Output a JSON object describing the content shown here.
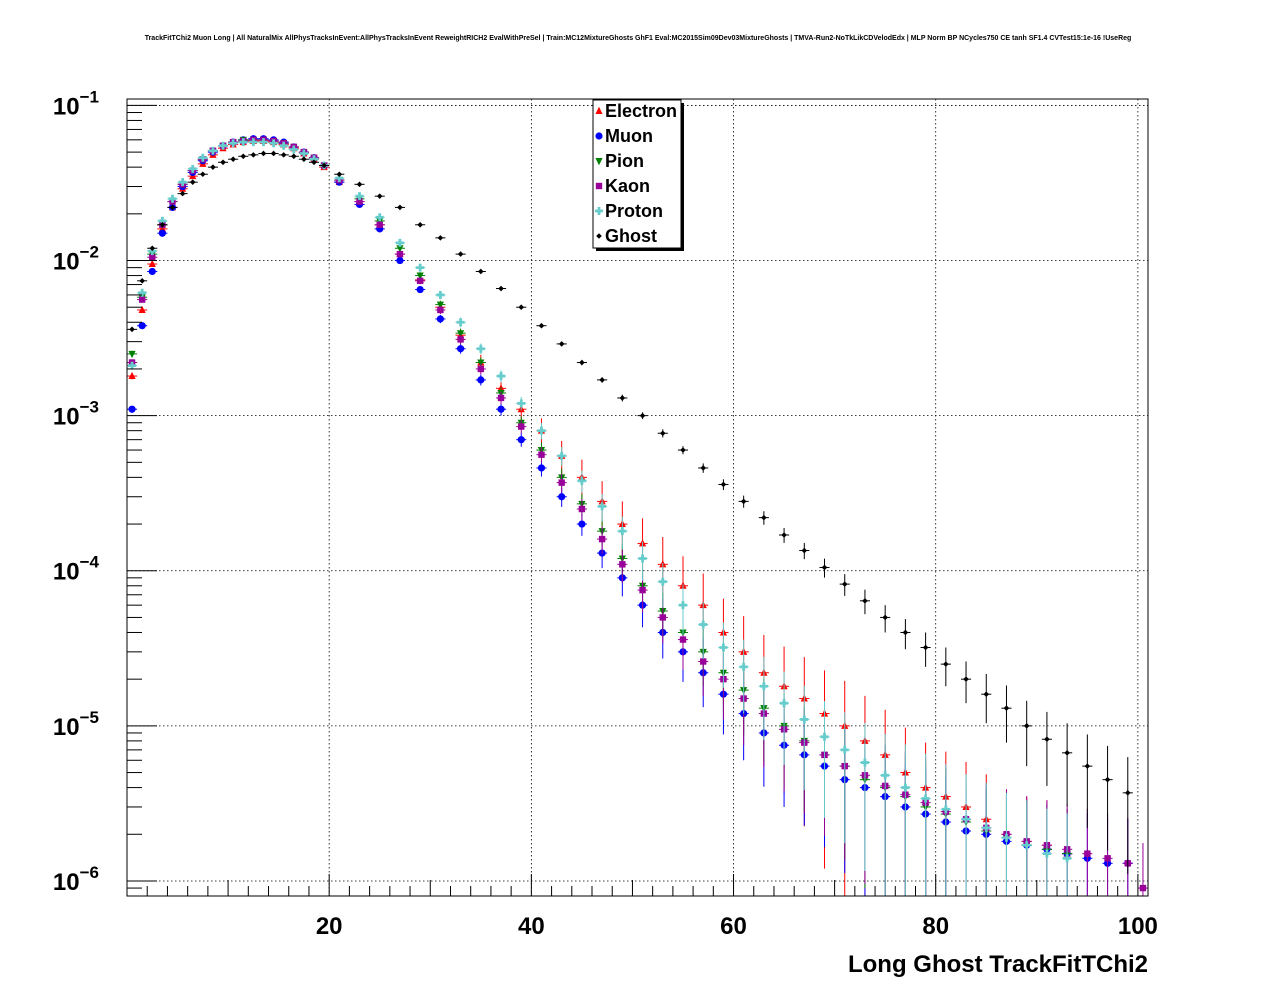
{
  "title": "TrackFitTChi2 Muon Long | All NaturalMix AllPhysTracksInEvent:AllPhysTracksInEvent ReweightRICH2 EvalWithPreSel | Train:MC12MixtureGhosts GhF1 Eval:MC2015Sim09Dev03MixtureGhosts | TMVA-Run2-NoTkLikCDVelodEdx | MLP Norm BP NCycles750 CE tanh SF1.4 CVTest15:1e-16 !UseReg",
  "chart_data": {
    "type": "scatter",
    "title": "TrackFitTChi2 Muon Long | All NaturalMix AllPhysTracksInEvent:AllPhysTracksInEvent ReweightRICH2 EvalWithPreSel | Train:MC12MixtureGhosts GhF1 Eval:MC2015Sim09Dev03MixtureGhosts | TMVA-Run2-NoTkLikCDVelodEdx | MLP Norm BP NCycles750 CE tanh SF1.4 CVTest15:1e-16 !UseReg",
    "xlabel": "Long Ghost TrackFitTChi2",
    "ylabel": "",
    "xlim": [
      0,
      101
    ],
    "ylim": [
      8e-07,
      0.11
    ],
    "log_y": true,
    "grid": true,
    "legend_position": "top-center",
    "x_ticks": [
      {
        "value": 20,
        "label": "20"
      },
      {
        "value": 40,
        "label": "40"
      },
      {
        "value": 60,
        "label": "60"
      },
      {
        "value": 80,
        "label": "80"
      },
      {
        "value": 100,
        "label": "100"
      }
    ],
    "y_ticks": [
      {
        "value": 1e-06,
        "base": "10",
        "exp": "−6"
      },
      {
        "value": 1e-05,
        "base": "10",
        "exp": "−5"
      },
      {
        "value": 0.0001,
        "base": "10",
        "exp": "−4"
      },
      {
        "value": 0.001,
        "base": "10",
        "exp": "−3"
      },
      {
        "value": 0.01,
        "base": "10",
        "exp": "−2"
      },
      {
        "value": 0.1,
        "base": "10",
        "exp": "−1"
      }
    ],
    "series": [
      {
        "name": "Electron",
        "color": "#ff0000",
        "marker": "triangle-up",
        "x": [
          0.5,
          1.5,
          2.5,
          3.5,
          4.5,
          5.5,
          6.5,
          7.5,
          8.5,
          9.5,
          10.5,
          11.5,
          12.5,
          13.5,
          14.5,
          15.5,
          16.5,
          17.5,
          18.5,
          19.5,
          21,
          23,
          25,
          27,
          29,
          31,
          33,
          35,
          37,
          39,
          41,
          43,
          45,
          47,
          49,
          51,
          53,
          55,
          57,
          59,
          61,
          63,
          65,
          67,
          69,
          71,
          73,
          75,
          77,
          79,
          81,
          83,
          85,
          87,
          89,
          91,
          93
        ],
        "y": [
          0.0018,
          0.0048,
          0.0095,
          0.016,
          0.022,
          0.029,
          0.035,
          0.042,
          0.048,
          0.053,
          0.056,
          0.058,
          0.059,
          0.059,
          0.058,
          0.056,
          0.053,
          0.049,
          0.045,
          0.04,
          0.032,
          0.024,
          0.017,
          0.011,
          0.0075,
          0.005,
          0.0033,
          0.0022,
          0.0015,
          0.0011,
          0.0008,
          0.00055,
          0.0004,
          0.00028,
          0.0002,
          0.00015,
          0.00011,
          8e-05,
          6e-05,
          4e-05,
          3e-05,
          2.2e-05,
          1.8e-05,
          1.5e-05,
          1.2e-05,
          1e-05,
          8e-06,
          6.5e-06,
          5e-06,
          4e-06,
          3.5e-06,
          3e-06,
          2.5e-06,
          2e-06,
          1.8e-06,
          1.7e-06,
          1.5e-06
        ],
        "err_rel": [
          0.05,
          0.03,
          0.03,
          0.02,
          0.02,
          0.02,
          0.02,
          0.02,
          0.02,
          0.02,
          0.02,
          0.02,
          0.02,
          0.02,
          0.02,
          0.02,
          0.02,
          0.02,
          0.02,
          0.02,
          0.03,
          0.03,
          0.04,
          0.05,
          0.06,
          0.08,
          0.1,
          0.12,
          0.14,
          0.16,
          0.2,
          0.25,
          0.3,
          0.35,
          0.4,
          0.45,
          0.5,
          0.55,
          0.6,
          0.65,
          0.7,
          0.75,
          0.8,
          0.85,
          0.9,
          0.95,
          0.95,
          0.95,
          0.95,
          0.95,
          0.95,
          0.95,
          0.95,
          0.95,
          0.95,
          0.95,
          0.95
        ]
      },
      {
        "name": "Muon",
        "color": "#0000ff",
        "marker": "circle",
        "x": [
          0.5,
          1.5,
          2.5,
          3.5,
          4.5,
          5.5,
          6.5,
          7.5,
          8.5,
          9.5,
          10.5,
          11.5,
          12.5,
          13.5,
          14.5,
          15.5,
          16.5,
          17.5,
          18.5,
          19.5,
          21,
          23,
          25,
          27,
          29,
          31,
          33,
          35,
          37,
          39,
          41,
          43,
          45,
          47,
          49,
          51,
          53,
          55,
          57,
          59,
          61,
          63,
          65,
          67,
          69,
          71,
          73,
          75,
          77,
          79,
          81,
          83,
          85,
          87,
          89,
          91,
          93,
          95,
          97,
          99
        ],
        "y": [
          0.0011,
          0.0038,
          0.0085,
          0.015,
          0.022,
          0.03,
          0.037,
          0.044,
          0.05,
          0.055,
          0.058,
          0.06,
          0.061,
          0.061,
          0.06,
          0.058,
          0.054,
          0.05,
          0.046,
          0.041,
          0.032,
          0.023,
          0.016,
          0.01,
          0.0065,
          0.0042,
          0.0027,
          0.0017,
          0.0011,
          0.0007,
          0.00046,
          0.0003,
          0.0002,
          0.00013,
          9e-05,
          6e-05,
          4e-05,
          3e-05,
          2.2e-05,
          1.6e-05,
          1.2e-05,
          9e-06,
          7.5e-06,
          6.5e-06,
          5.5e-06,
          4.5e-06,
          4e-06,
          3.5e-06,
          3e-06,
          2.7e-06,
          2.4e-06,
          2.1e-06,
          2e-06,
          1.8e-06,
          1.7e-06,
          1.6e-06,
          1.5e-06,
          1.4e-06,
          1.3e-06,
          1.3e-06
        ],
        "err_rel": [
          0.05,
          0.03,
          0.03,
          0.02,
          0.02,
          0.02,
          0.02,
          0.02,
          0.02,
          0.02,
          0.02,
          0.02,
          0.02,
          0.02,
          0.02,
          0.02,
          0.02,
          0.02,
          0.02,
          0.02,
          0.03,
          0.03,
          0.04,
          0.04,
          0.05,
          0.06,
          0.07,
          0.08,
          0.09,
          0.1,
          0.12,
          0.14,
          0.16,
          0.2,
          0.24,
          0.28,
          0.32,
          0.36,
          0.4,
          0.45,
          0.5,
          0.55,
          0.6,
          0.65,
          0.7,
          0.75,
          0.8,
          0.85,
          0.9,
          0.95,
          0.95,
          0.95,
          0.95,
          0.95,
          0.95,
          0.95,
          0.95,
          0.95,
          0.95,
          0.95
        ]
      },
      {
        "name": "Pion",
        "color": "#008000",
        "marker": "triangle-down",
        "x": [
          0.5,
          1.5,
          2.5,
          3.5,
          4.5,
          5.5,
          6.5,
          7.5,
          8.5,
          9.5,
          10.5,
          11.5,
          12.5,
          13.5,
          14.5,
          15.5,
          16.5,
          17.5,
          18.5,
          19.5,
          21,
          23,
          25,
          27,
          29,
          31,
          33,
          35,
          37,
          39,
          41,
          43,
          45,
          47,
          49,
          51,
          53,
          55,
          57,
          59,
          61,
          63,
          65,
          67,
          69,
          71,
          73,
          75,
          77,
          79,
          81,
          83,
          85,
          87,
          89,
          91,
          93
        ],
        "y": [
          0.0025,
          0.0058,
          0.011,
          0.017,
          0.024,
          0.031,
          0.038,
          0.045,
          0.051,
          0.055,
          0.058,
          0.06,
          0.06,
          0.06,
          0.059,
          0.057,
          0.054,
          0.05,
          0.046,
          0.041,
          0.033,
          0.025,
          0.018,
          0.012,
          0.008,
          0.0052,
          0.0034,
          0.0022,
          0.0014,
          0.0009,
          0.0006,
          0.0004,
          0.00027,
          0.00018,
          0.00012,
          8e-05,
          5.5e-05,
          4e-05,
          3e-05,
          2.2e-05,
          1.7e-05,
          1.3e-05,
          1e-05,
          8e-06,
          6.5e-06,
          5.5e-06,
          4.5e-06,
          4e-06,
          3.5e-06,
          3e-06,
          2.7e-06,
          2.4e-06,
          2.1e-06,
          1.9e-06,
          1.7e-06,
          1.6e-06,
          1.5e-06
        ],
        "err_rel": [
          0.05,
          0.03,
          0.03,
          0.02,
          0.02,
          0.02,
          0.02,
          0.02,
          0.02,
          0.02,
          0.02,
          0.02,
          0.02,
          0.02,
          0.02,
          0.02,
          0.02,
          0.02,
          0.02,
          0.02,
          0.03,
          0.03,
          0.04,
          0.04,
          0.05,
          0.06,
          0.07,
          0.08,
          0.09,
          0.1,
          0.12,
          0.14,
          0.16,
          0.2,
          0.24,
          0.28,
          0.32,
          0.36,
          0.4,
          0.45,
          0.5,
          0.55,
          0.6,
          0.65,
          0.7,
          0.75,
          0.8,
          0.85,
          0.9,
          0.95,
          0.95,
          0.95,
          0.95,
          0.95,
          0.95,
          0.95,
          0.95
        ]
      },
      {
        "name": "Kaon",
        "color": "#990099",
        "marker": "square",
        "x": [
          0.5,
          1.5,
          2.5,
          3.5,
          4.5,
          5.5,
          6.5,
          7.5,
          8.5,
          9.5,
          10.5,
          11.5,
          12.5,
          13.5,
          14.5,
          15.5,
          16.5,
          17.5,
          18.5,
          19.5,
          21,
          23,
          25,
          27,
          29,
          31,
          33,
          35,
          37,
          39,
          41,
          43,
          45,
          47,
          49,
          51,
          53,
          55,
          57,
          59,
          61,
          63,
          65,
          67,
          69,
          71,
          73,
          75,
          77,
          79,
          81,
          83,
          85,
          87,
          89,
          91,
          93,
          95,
          97,
          99,
          100.5
        ],
        "y": [
          0.0022,
          0.0056,
          0.0105,
          0.017,
          0.024,
          0.031,
          0.038,
          0.045,
          0.051,
          0.055,
          0.058,
          0.059,
          0.06,
          0.06,
          0.059,
          0.057,
          0.054,
          0.05,
          0.046,
          0.041,
          0.033,
          0.024,
          0.017,
          0.011,
          0.0074,
          0.0048,
          0.0031,
          0.002,
          0.0013,
          0.00085,
          0.00056,
          0.00037,
          0.00025,
          0.00016,
          0.00011,
          7.5e-05,
          5e-05,
          3.6e-05,
          2.6e-05,
          2e-05,
          1.5e-05,
          1.2e-05,
          9.5e-06,
          7.8e-06,
          6.5e-06,
          5.5e-06,
          4.8e-06,
          4.1e-06,
          3.6e-06,
          3.2e-06,
          2.8e-06,
          2.5e-06,
          2.2e-06,
          2e-06,
          1.8e-06,
          1.7e-06,
          1.6e-06,
          1.5e-06,
          1.4e-06,
          1.3e-06,
          9e-07
        ],
        "err_rel": [
          0.05,
          0.03,
          0.03,
          0.02,
          0.02,
          0.02,
          0.02,
          0.02,
          0.02,
          0.02,
          0.02,
          0.02,
          0.02,
          0.02,
          0.02,
          0.02,
          0.02,
          0.02,
          0.02,
          0.02,
          0.03,
          0.03,
          0.04,
          0.04,
          0.05,
          0.06,
          0.07,
          0.08,
          0.09,
          0.1,
          0.12,
          0.14,
          0.16,
          0.2,
          0.24,
          0.28,
          0.32,
          0.36,
          0.4,
          0.45,
          0.5,
          0.55,
          0.6,
          0.65,
          0.7,
          0.75,
          0.8,
          0.85,
          0.9,
          0.95,
          0.95,
          0.95,
          0.95,
          0.95,
          0.95,
          0.95,
          0.95,
          0.95,
          0.95,
          0.95,
          0.95
        ]
      },
      {
        "name": "Proton",
        "color": "#66cccc",
        "marker": "cross",
        "x": [
          0.5,
          1.5,
          2.5,
          3.5,
          4.5,
          5.5,
          6.5,
          7.5,
          8.5,
          9.5,
          10.5,
          11.5,
          12.5,
          13.5,
          14.5,
          15.5,
          16.5,
          17.5,
          18.5,
          19.5,
          21,
          23,
          25,
          27,
          29,
          31,
          33,
          35,
          37,
          39,
          41,
          43,
          45,
          47,
          49,
          51,
          53,
          55,
          57,
          59,
          61,
          63,
          65,
          67,
          69,
          71,
          73,
          75,
          77,
          79,
          81,
          83,
          85,
          87,
          89,
          91,
          93
        ],
        "y": [
          0.0021,
          0.0062,
          0.0115,
          0.018,
          0.025,
          0.032,
          0.039,
          0.046,
          0.051,
          0.055,
          0.057,
          0.058,
          0.058,
          0.058,
          0.057,
          0.055,
          0.052,
          0.049,
          0.045,
          0.041,
          0.034,
          0.026,
          0.019,
          0.013,
          0.009,
          0.006,
          0.004,
          0.0027,
          0.0018,
          0.0012,
          0.0008,
          0.00055,
          0.00038,
          0.00026,
          0.00018,
          0.00012,
          8.5e-05,
          6e-05,
          4.5e-05,
          3.2e-05,
          2.4e-05,
          1.8e-05,
          1.4e-05,
          1.1e-05,
          8.5e-06,
          7e-06,
          5.8e-06,
          4.8e-06,
          4e-06,
          3.4e-06,
          2.9e-06,
          2.5e-06,
          2.2e-06,
          1.9e-06,
          1.7e-06,
          1.5e-06,
          1.4e-06
        ],
        "err_rel": [
          0.05,
          0.03,
          0.03,
          0.02,
          0.02,
          0.02,
          0.02,
          0.02,
          0.02,
          0.02,
          0.02,
          0.02,
          0.02,
          0.02,
          0.02,
          0.02,
          0.02,
          0.02,
          0.02,
          0.02,
          0.03,
          0.03,
          0.04,
          0.04,
          0.05,
          0.06,
          0.07,
          0.08,
          0.09,
          0.1,
          0.12,
          0.14,
          0.16,
          0.2,
          0.24,
          0.28,
          0.32,
          0.36,
          0.4,
          0.45,
          0.5,
          0.55,
          0.6,
          0.65,
          0.7,
          0.75,
          0.8,
          0.85,
          0.9,
          0.95,
          0.95,
          0.95,
          0.95,
          0.95,
          0.95,
          0.95,
          0.95
        ]
      },
      {
        "name": "Ghost",
        "color": "#000000",
        "marker": "diamond",
        "x": [
          0.5,
          1.5,
          2.5,
          3.5,
          4.5,
          5.5,
          6.5,
          7.5,
          8.5,
          9.5,
          10.5,
          11.5,
          12.5,
          13.5,
          14.5,
          15.5,
          16.5,
          17.5,
          18.5,
          19.5,
          21,
          23,
          25,
          27,
          29,
          31,
          33,
          35,
          37,
          39,
          41,
          43,
          45,
          47,
          49,
          51,
          53,
          55,
          57,
          59,
          61,
          63,
          65,
          67,
          69,
          71,
          73,
          75,
          77,
          79,
          81,
          83,
          85,
          87,
          89,
          91,
          93,
          95,
          97,
          99
        ],
        "y": [
          0.0036,
          0.0074,
          0.012,
          0.017,
          0.022,
          0.027,
          0.032,
          0.036,
          0.04,
          0.043,
          0.045,
          0.047,
          0.048,
          0.049,
          0.049,
          0.048,
          0.047,
          0.045,
          0.043,
          0.041,
          0.036,
          0.031,
          0.026,
          0.022,
          0.017,
          0.014,
          0.011,
          0.0085,
          0.0066,
          0.005,
          0.0038,
          0.0029,
          0.0022,
          0.0017,
          0.0013,
          0.001,
          0.00077,
          0.0006,
          0.00046,
          0.00036,
          0.00028,
          0.00022,
          0.00017,
          0.000135,
          0.000105,
          8.2e-05,
          6.4e-05,
          5e-05,
          4e-05,
          3.2e-05,
          2.5e-05,
          2e-05,
          1.6e-05,
          1.3e-05,
          1e-05,
          8.2e-06,
          6.7e-06,
          5.5e-06,
          4.5e-06,
          3.7e-06
        ],
        "err_rel": [
          0.03,
          0.02,
          0.02,
          0.02,
          0.02,
          0.02,
          0.02,
          0.02,
          0.02,
          0.02,
          0.02,
          0.02,
          0.02,
          0.02,
          0.02,
          0.02,
          0.02,
          0.02,
          0.02,
          0.02,
          0.02,
          0.02,
          0.02,
          0.02,
          0.02,
          0.02,
          0.02,
          0.02,
          0.02,
          0.03,
          0.03,
          0.03,
          0.04,
          0.04,
          0.05,
          0.05,
          0.06,
          0.06,
          0.07,
          0.08,
          0.09,
          0.1,
          0.11,
          0.12,
          0.14,
          0.16,
          0.18,
          0.2,
          0.22,
          0.25,
          0.28,
          0.3,
          0.35,
          0.4,
          0.45,
          0.5,
          0.55,
          0.6,
          0.65,
          0.7
        ]
      }
    ]
  }
}
